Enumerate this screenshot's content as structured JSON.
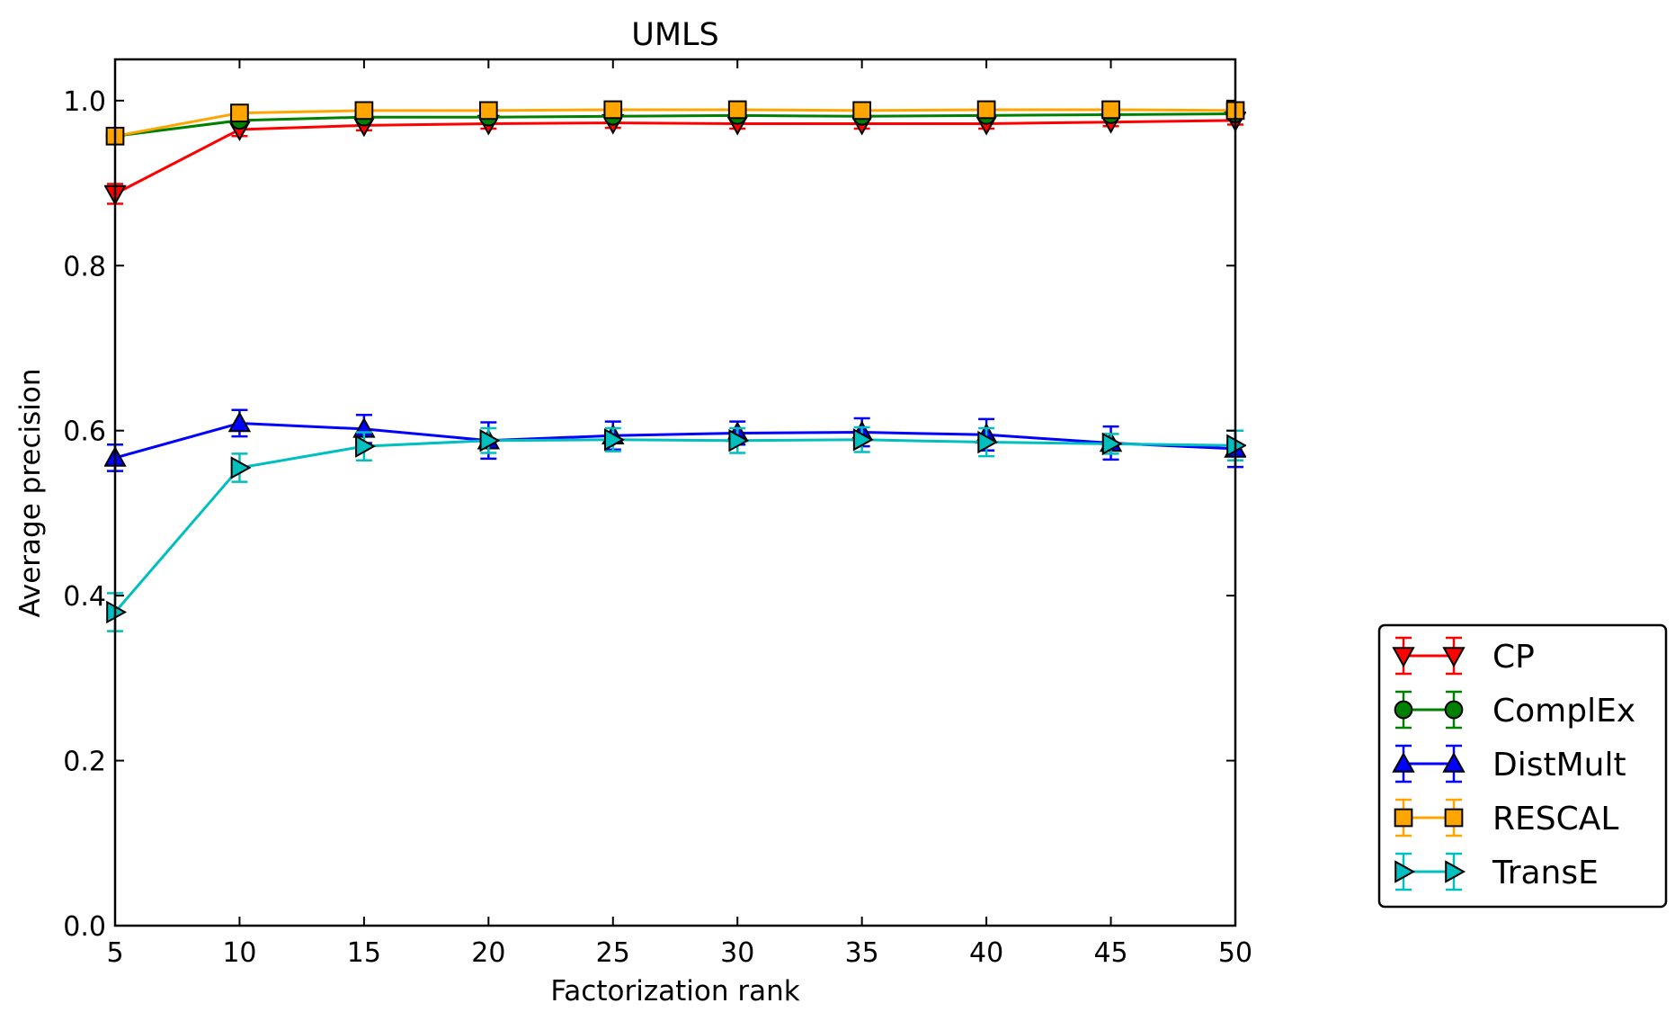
{
  "chart_data": {
    "type": "line",
    "title": "UMLS",
    "xlabel": "Factorization rank",
    "ylabel": "Average precision",
    "x": [
      5,
      10,
      15,
      20,
      25,
      30,
      35,
      40,
      45,
      50
    ],
    "xlim": [
      5,
      50
    ],
    "ylim": [
      0.0,
      1.05
    ],
    "xticks": [
      "5",
      "10",
      "15",
      "20",
      "25",
      "30",
      "35",
      "40",
      "45",
      "50"
    ],
    "yticks": [
      "0.0",
      "0.2",
      "0.4",
      "0.6",
      "0.8",
      "1.0"
    ],
    "grid": false,
    "legend_position": "outside right, lower",
    "series": [
      {
        "name": "CP",
        "color": "#ff0000",
        "marker": "triangle-down",
        "values": [
          0.887,
          0.965,
          0.97,
          0.972,
          0.973,
          0.972,
          0.972,
          0.972,
          0.974,
          0.976
        ],
        "errors": [
          0.012,
          0.008,
          0.006,
          0.006,
          0.006,
          0.006,
          0.006,
          0.006,
          0.005,
          0.005
        ]
      },
      {
        "name": "ComplEx",
        "color": "#008000",
        "marker": "circle",
        "values": [
          0.957,
          0.976,
          0.98,
          0.98,
          0.981,
          0.982,
          0.981,
          0.982,
          0.983,
          0.984
        ],
        "errors": [
          0.004,
          0.003,
          0.003,
          0.003,
          0.003,
          0.003,
          0.003,
          0.003,
          0.003,
          0.003
        ]
      },
      {
        "name": "DistMult",
        "color": "#0000ff",
        "marker": "triangle-up",
        "values": [
          0.567,
          0.609,
          0.602,
          0.588,
          0.594,
          0.597,
          0.598,
          0.595,
          0.585,
          0.578
        ],
        "errors": [
          0.016,
          0.016,
          0.017,
          0.022,
          0.017,
          0.014,
          0.017,
          0.019,
          0.02,
          0.022
        ]
      },
      {
        "name": "RESCAL",
        "color": "#ffa500",
        "marker": "square",
        "values": [
          0.957,
          0.985,
          0.988,
          0.988,
          0.989,
          0.989,
          0.988,
          0.989,
          0.989,
          0.988
        ],
        "errors": [
          0.003,
          0.003,
          0.003,
          0.003,
          0.003,
          0.003,
          0.003,
          0.003,
          0.003,
          0.008
        ]
      },
      {
        "name": "TransE",
        "color": "#00bfbf",
        "marker": "triangle-right",
        "values": [
          0.38,
          0.555,
          0.581,
          0.588,
          0.589,
          0.588,
          0.589,
          0.586,
          0.584,
          0.582
        ],
        "errors": [
          0.023,
          0.017,
          0.017,
          0.015,
          0.014,
          0.015,
          0.015,
          0.017,
          0.012,
          0.018
        ]
      }
    ]
  },
  "title": "UMLS",
  "xlabel": "Factorization rank",
  "ylabel": "Average precision"
}
